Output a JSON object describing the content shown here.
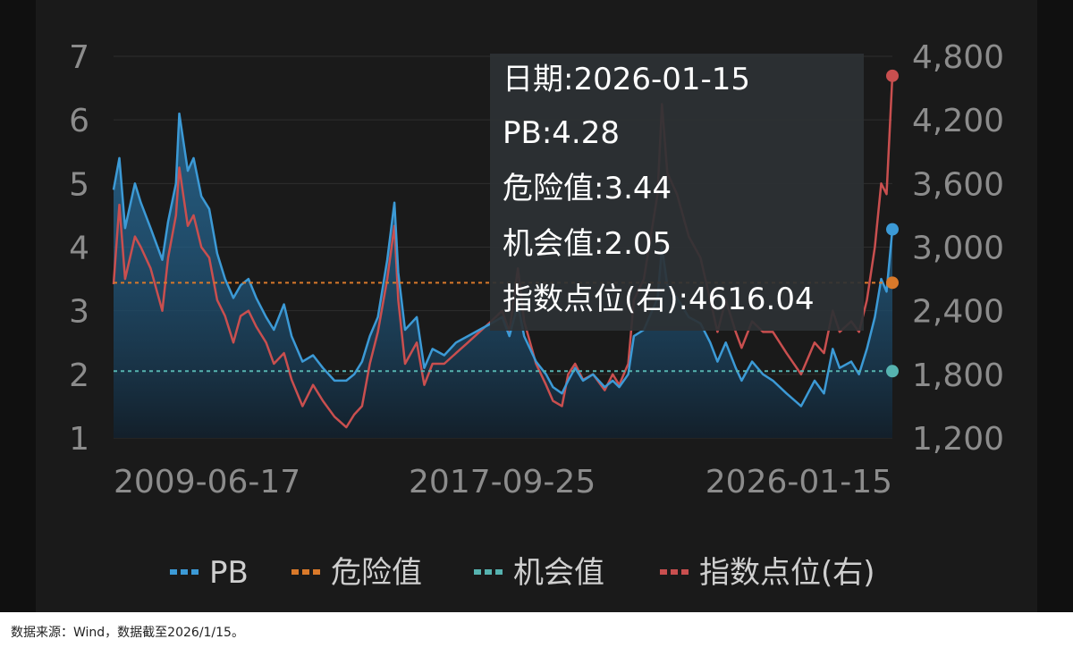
{
  "chart_data": {
    "type": "line",
    "y_left": {
      "ticks": [
        "1",
        "2",
        "3",
        "4",
        "5",
        "6",
        "7"
      ],
      "ylim": [
        1,
        7
      ]
    },
    "y_right": {
      "ticks": [
        "1,200",
        "1,800",
        "2,400",
        "3,000",
        "3,600",
        "4,200",
        "4,800"
      ],
      "ylim": [
        1200,
        4800
      ]
    },
    "x_ticks": [
      "2009-06-17",
      "2017-09-25",
      "2026-01-15"
    ],
    "x_range": [
      "2009-06-17",
      "2026-01-15"
    ],
    "grid": true,
    "legend_position": "bottom",
    "series": [
      {
        "name": "PB",
        "color": "#3c9ad6",
        "axis": "left",
        "points": [
          [
            "2009-06-17",
            4.9
          ],
          [
            "2009-08-01",
            5.4
          ],
          [
            "2009-09-15",
            4.3
          ],
          [
            "2009-11-30",
            5.0
          ],
          [
            "2010-01-15",
            4.7
          ],
          [
            "2010-04-01",
            4.3
          ],
          [
            "2010-07-01",
            3.8
          ],
          [
            "2010-08-15",
            4.4
          ],
          [
            "2010-10-15",
            5.0
          ],
          [
            "2010-11-10",
            6.1
          ],
          [
            "2011-01-15",
            5.2
          ],
          [
            "2011-03-01",
            5.4
          ],
          [
            "2011-05-01",
            4.8
          ],
          [
            "2011-07-01",
            4.6
          ],
          [
            "2011-09-01",
            3.9
          ],
          [
            "2011-11-01",
            3.5
          ],
          [
            "2012-01-05",
            3.2
          ],
          [
            "2012-03-01",
            3.4
          ],
          [
            "2012-05-01",
            3.5
          ],
          [
            "2012-07-01",
            3.2
          ],
          [
            "2012-09-15",
            2.9
          ],
          [
            "2012-11-15",
            2.7
          ],
          [
            "2013-02-01",
            3.1
          ],
          [
            "2013-04-01",
            2.6
          ],
          [
            "2013-06-25",
            2.2
          ],
          [
            "2013-09-15",
            2.3
          ],
          [
            "2013-12-01",
            2.1
          ],
          [
            "2014-03-01",
            1.9
          ],
          [
            "2014-06-01",
            1.9
          ],
          [
            "2014-08-01",
            2.0
          ],
          [
            "2014-10-01",
            2.2
          ],
          [
            "2014-12-01",
            2.6
          ],
          [
            "2015-02-01",
            2.9
          ],
          [
            "2015-04-15",
            3.8
          ],
          [
            "2015-06-10",
            4.7
          ],
          [
            "2015-07-10",
            3.6
          ],
          [
            "2015-09-01",
            2.7
          ],
          [
            "2015-12-01",
            2.9
          ],
          [
            "2016-01-28",
            2.1
          ],
          [
            "2016-04-01",
            2.4
          ],
          [
            "2016-07-01",
            2.3
          ],
          [
            "2016-10-01",
            2.5
          ],
          [
            "2017-01-01",
            2.6
          ],
          [
            "2017-04-01",
            2.7
          ],
          [
            "2017-07-01",
            2.8
          ],
          [
            "2017-09-25",
            2.9
          ],
          [
            "2017-11-20",
            2.6
          ],
          [
            "2018-01-25",
            3.1
          ],
          [
            "2018-03-15",
            2.6
          ],
          [
            "2018-06-15",
            2.2
          ],
          [
            "2018-09-01",
            2.0
          ],
          [
            "2018-10-25",
            1.8
          ],
          [
            "2019-01-03",
            1.7
          ],
          [
            "2019-02-20",
            1.9
          ],
          [
            "2019-04-15",
            2.1
          ],
          [
            "2019-06-15",
            1.9
          ],
          [
            "2019-09-01",
            2.0
          ],
          [
            "2019-12-01",
            1.8
          ],
          [
            "2020-02-01",
            1.9
          ],
          [
            "2020-03-23",
            1.8
          ],
          [
            "2020-06-01",
            2.0
          ],
          [
            "2020-07-15",
            2.6
          ],
          [
            "2020-10-01",
            2.7
          ],
          [
            "2021-01-15",
            3.2
          ],
          [
            "2021-02-18",
            4.0
          ],
          [
            "2021-04-01",
            3.4
          ],
          [
            "2021-06-15",
            3.2
          ],
          [
            "2021-09-15",
            2.9
          ],
          [
            "2021-12-15",
            2.8
          ],
          [
            "2022-03-01",
            2.5
          ],
          [
            "2022-04-26",
            2.2
          ],
          [
            "2022-06-30",
            2.5
          ],
          [
            "2022-09-15",
            2.1
          ],
          [
            "2022-10-31",
            1.9
          ],
          [
            "2023-01-20",
            2.2
          ],
          [
            "2023-04-15",
            2.0
          ],
          [
            "2023-07-01",
            1.9
          ],
          [
            "2023-10-15",
            1.7
          ],
          [
            "2024-02-05",
            1.5
          ],
          [
            "2024-05-20",
            1.9
          ],
          [
            "2024-08-01",
            1.7
          ],
          [
            "2024-10-08",
            2.4
          ],
          [
            "2024-12-01",
            2.1
          ],
          [
            "2025-03-01",
            2.2
          ],
          [
            "2025-05-01",
            2.0
          ],
          [
            "2025-07-01",
            2.4
          ],
          [
            "2025-09-01",
            2.9
          ],
          [
            "2025-10-20",
            3.5
          ],
          [
            "2025-12-01",
            3.3
          ],
          [
            "2026-01-15",
            4.28
          ]
        ]
      },
      {
        "name": "危险值",
        "color": "#d9792a",
        "axis": "left",
        "constant": 3.44
      },
      {
        "name": "机会值",
        "color": "#56b3b0",
        "axis": "left",
        "constant": 2.05
      },
      {
        "name": "指数点位(右)",
        "color": "#c94f4f",
        "axis": "right",
        "points": [
          [
            "2009-06-17",
            2650
          ],
          [
            "2009-08-01",
            3400
          ],
          [
            "2009-09-15",
            2700
          ],
          [
            "2009-11-30",
            3100
          ],
          [
            "2010-01-15",
            3000
          ],
          [
            "2010-04-01",
            2800
          ],
          [
            "2010-07-01",
            2400
          ],
          [
            "2010-08-15",
            2900
          ],
          [
            "2010-10-15",
            3300
          ],
          [
            "2010-11-10",
            3750
          ],
          [
            "2011-01-15",
            3200
          ],
          [
            "2011-03-01",
            3300
          ],
          [
            "2011-05-01",
            3000
          ],
          [
            "2011-07-01",
            2900
          ],
          [
            "2011-09-01",
            2500
          ],
          [
            "2011-11-01",
            2350
          ],
          [
            "2012-01-05",
            2100
          ],
          [
            "2012-03-01",
            2350
          ],
          [
            "2012-05-01",
            2400
          ],
          [
            "2012-07-01",
            2250
          ],
          [
            "2012-09-15",
            2100
          ],
          [
            "2012-11-15",
            1900
          ],
          [
            "2013-02-01",
            2000
          ],
          [
            "2013-04-01",
            1750
          ],
          [
            "2013-06-25",
            1500
          ],
          [
            "2013-09-15",
            1700
          ],
          [
            "2013-12-01",
            1550
          ],
          [
            "2014-03-01",
            1400
          ],
          [
            "2014-06-01",
            1300
          ],
          [
            "2014-08-01",
            1420
          ],
          [
            "2014-10-01",
            1500
          ],
          [
            "2014-12-01",
            1900
          ],
          [
            "2015-02-01",
            2200
          ],
          [
            "2015-04-15",
            2700
          ],
          [
            "2015-06-10",
            3200
          ],
          [
            "2015-07-10",
            2500
          ],
          [
            "2015-09-01",
            1900
          ],
          [
            "2015-12-01",
            2100
          ],
          [
            "2016-01-28",
            1700
          ],
          [
            "2016-04-01",
            1900
          ],
          [
            "2016-07-01",
            1900
          ],
          [
            "2016-10-01",
            2000
          ],
          [
            "2017-01-01",
            2100
          ],
          [
            "2017-04-01",
            2200
          ],
          [
            "2017-07-01",
            2300
          ],
          [
            "2017-09-25",
            2400
          ],
          [
            "2017-11-20",
            2200
          ],
          [
            "2018-01-25",
            2800
          ],
          [
            "2018-03-15",
            2300
          ],
          [
            "2018-06-15",
            1900
          ],
          [
            "2018-09-01",
            1700
          ],
          [
            "2018-10-25",
            1550
          ],
          [
            "2019-01-03",
            1500
          ],
          [
            "2019-02-20",
            1800
          ],
          [
            "2019-04-15",
            1900
          ],
          [
            "2019-06-15",
            1750
          ],
          [
            "2019-09-01",
            1800
          ],
          [
            "2019-12-01",
            1650
          ],
          [
            "2020-02-01",
            1800
          ],
          [
            "2020-03-23",
            1700
          ],
          [
            "2020-06-01",
            1900
          ],
          [
            "2020-07-15",
            2500
          ],
          [
            "2020-10-01",
            2700
          ],
          [
            "2021-01-15",
            3500
          ],
          [
            "2021-02-18",
            4350
          ],
          [
            "2021-04-01",
            3700
          ],
          [
            "2021-06-15",
            3500
          ],
          [
            "2021-09-15",
            3100
          ],
          [
            "2021-12-15",
            2900
          ],
          [
            "2022-03-01",
            2500
          ],
          [
            "2022-04-26",
            2200
          ],
          [
            "2022-06-30",
            2500
          ],
          [
            "2022-09-15",
            2200
          ],
          [
            "2022-10-31",
            2050
          ],
          [
            "2023-01-20",
            2300
          ],
          [
            "2023-04-15",
            2200
          ],
          [
            "2023-07-01",
            2200
          ],
          [
            "2023-10-15",
            2000
          ],
          [
            "2024-02-05",
            1800
          ],
          [
            "2024-05-20",
            2100
          ],
          [
            "2024-08-01",
            2000
          ],
          [
            "2024-10-08",
            2400
          ],
          [
            "2024-12-01",
            2200
          ],
          [
            "2025-03-01",
            2300
          ],
          [
            "2025-05-01",
            2200
          ],
          [
            "2025-07-01",
            2500
          ],
          [
            "2025-09-01",
            3000
          ],
          [
            "2025-10-20",
            3600
          ],
          [
            "2025-12-01",
            3500
          ],
          [
            "2026-01-15",
            4616.04
          ]
        ]
      }
    ],
    "tooltip": {
      "date": "日期:2026-01-15",
      "pb": "PB:4.28",
      "danger": "危险值:3.44",
      "opportunity": "机会值:2.05",
      "index": "指数点位(右):4616.04"
    }
  },
  "source_note": "数据来源：Wind，数据截至2026/1/15。"
}
